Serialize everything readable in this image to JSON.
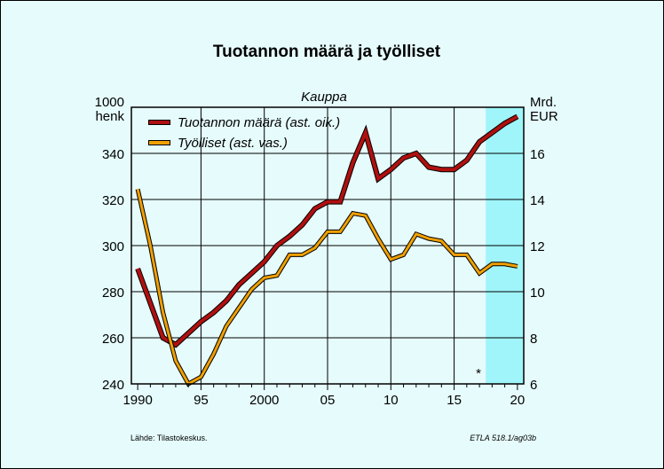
{
  "title": "Tuotannon määrä ja työlliset",
  "chart_data": {
    "type": "line",
    "subtitle": "Kauppa",
    "x": [
      1990,
      1991,
      1992,
      1993,
      1994,
      1995,
      1996,
      1997,
      1998,
      1999,
      2000,
      2001,
      2002,
      2003,
      2004,
      2005,
      2006,
      2007,
      2008,
      2009,
      2010,
      2011,
      2012,
      2013,
      2014,
      2015,
      2016,
      2017,
      2018,
      2019,
      2020
    ],
    "xlim": [
      1989.5,
      2020.5
    ],
    "x_ticks": [
      1990,
      1995,
      2000,
      2005,
      2010,
      2015,
      2020
    ],
    "x_tick_labels": [
      "1990",
      "95",
      "2000",
      "05",
      "10",
      "15",
      "20"
    ],
    "left_axis": {
      "unit_line1": "1000",
      "unit_line2": "henk",
      "ticks": [
        240,
        260,
        280,
        300,
        320,
        340
      ],
      "ylim": [
        240,
        360
      ]
    },
    "right_axis": {
      "unit_line1": "Mrd.",
      "unit_line2": "EUR",
      "ticks": [
        6,
        8,
        10,
        12,
        14,
        16
      ],
      "ylim": [
        6,
        18
      ]
    },
    "series": [
      {
        "name": "Tuotannon määrä (ast. oik.)",
        "axis": "right",
        "color": "#b01010",
        "values": [
          11.0,
          9.5,
          8.0,
          7.7,
          8.2,
          8.7,
          9.1,
          9.6,
          10.3,
          10.8,
          11.3,
          12.0,
          12.4,
          12.9,
          13.6,
          13.9,
          13.9,
          15.6,
          16.9,
          14.9,
          15.3,
          15.8,
          16.0,
          15.4,
          15.3,
          15.3,
          15.7,
          16.5,
          16.9,
          17.3,
          17.6
        ]
      },
      {
        "name": "Työlliset (ast. vas.)",
        "axis": "left",
        "color": "#f0a000",
        "values": [
          324.5,
          300.0,
          271.0,
          250.0,
          240.0,
          243.0,
          253.0,
          265.0,
          273.0,
          281.0,
          286.0,
          287.0,
          296.0,
          296.0,
          299.0,
          306.0,
          306.0,
          314.0,
          313.0,
          303.0,
          294.0,
          296.0,
          305.0,
          303.0,
          302.0,
          296.0,
          296.0,
          288.0,
          292.0,
          292.0,
          291.0
        ]
      }
    ],
    "forecast_from": 2017.5,
    "forecast_color": "#9ff5fa",
    "forecast_marker": "*",
    "grid": true
  },
  "footer": {
    "source": "Lähde:    Tilastokeskus.",
    "code": "ETLA 518.1/ag03b"
  }
}
